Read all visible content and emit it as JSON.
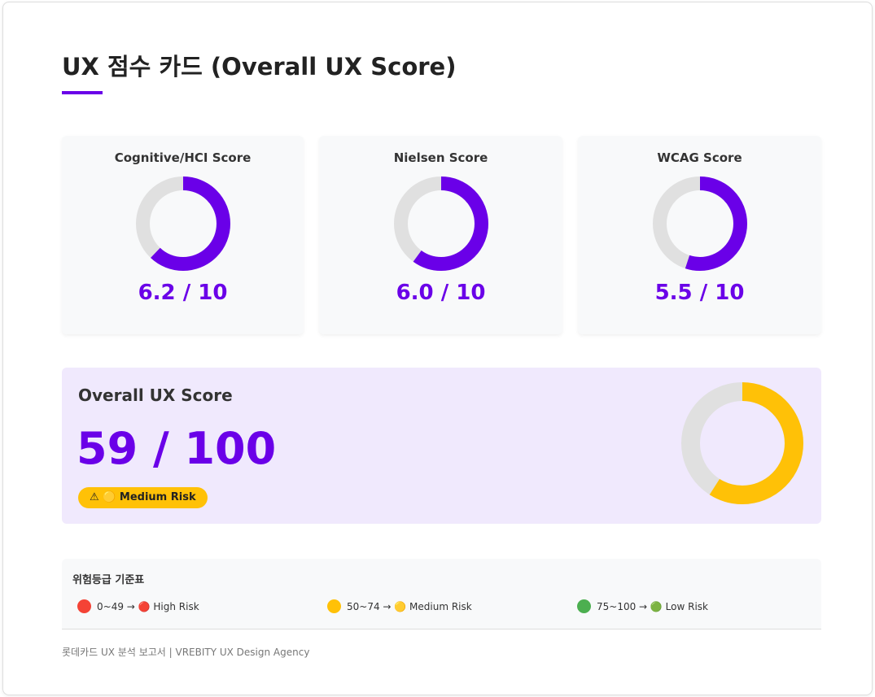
{
  "header": {
    "title": "UX 점수 카드 (Overall UX Score)"
  },
  "cards": [
    {
      "title": "Cognitive/HCI Score",
      "value": 6.2,
      "max": 10,
      "label": "6.2 / 10"
    },
    {
      "title": "Nielsen Score",
      "value": 6.0,
      "max": 10,
      "label": "6.0 / 10"
    },
    {
      "title": "WCAG Score",
      "value": 5.5,
      "max": 10,
      "label": "5.5 / 10"
    }
  ],
  "card_color": "#6a00e8",
  "overall": {
    "title": "Overall UX Score",
    "value": 59,
    "max": 100,
    "label": "59 / 100",
    "color": "#ffc107",
    "badge": "⚠ 🟡 Medium Risk"
  },
  "legend": {
    "title": "위험등급 기준표",
    "items": [
      {
        "label": "0~49 → 🔴 High Risk",
        "color": "#f44336"
      },
      {
        "label": "50~74 → 🟡 Medium Risk",
        "color": "#ffc107"
      },
      {
        "label": "75~100 → 🟢 Low Risk",
        "color": "#4caf50"
      }
    ]
  },
  "footer": "롯데카드 UX 분석 보고서 | VREBITY UX Design Agency"
}
